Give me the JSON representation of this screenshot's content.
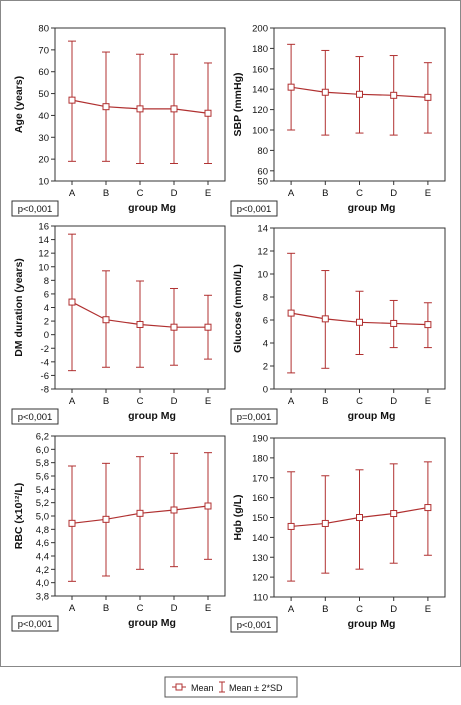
{
  "colors": {
    "series": "#b03030",
    "axis": "#333333",
    "grid": "#cccccc",
    "frame": "#888888",
    "text": "#111111"
  },
  "legend": {
    "mean_label": "Mean",
    "sd_label": "Mean ± 2*SD"
  },
  "chart_data": [
    {
      "type": "line",
      "xlabel": "group Mg",
      "ylabel": "Age (years)",
      "categories": [
        "A",
        "B",
        "C",
        "D",
        "E"
      ],
      "values": [
        47,
        44,
        43,
        43,
        41
      ],
      "upper": [
        74,
        69,
        68,
        68,
        64
      ],
      "lower": [
        19,
        19,
        18,
        18,
        18
      ],
      "ylim": [
        10,
        80
      ],
      "ticks": [
        10,
        20,
        30,
        40,
        50,
        60,
        70,
        80
      ],
      "p_value": "p<0,001"
    },
    {
      "type": "line",
      "xlabel": "group Mg",
      "ylabel": "SBP (mmHg)",
      "categories": [
        "A",
        "B",
        "C",
        "D",
        "E"
      ],
      "values": [
        142,
        137,
        135,
        134,
        132
      ],
      "upper": [
        184,
        178,
        172,
        173,
        166
      ],
      "lower": [
        100,
        95,
        97,
        95,
        97
      ],
      "ylim": [
        50,
        200
      ],
      "ticks": [
        50,
        60,
        80,
        100,
        120,
        140,
        160,
        180,
        200
      ],
      "p_value": "p<0,001"
    },
    {
      "type": "line",
      "xlabel": "group Mg",
      "ylabel": "DM duration (years)",
      "categories": [
        "A",
        "B",
        "C",
        "D",
        "E"
      ],
      "values": [
        4.8,
        2.2,
        1.5,
        1.1,
        1.1
      ],
      "upper": [
        14.8,
        9.4,
        7.9,
        6.8,
        5.8
      ],
      "lower": [
        -5.3,
        -4.8,
        -4.8,
        -4.5,
        -3.6
      ],
      "ylim": [
        -8,
        16
      ],
      "ticks": [
        -8,
        -6,
        -4,
        -2,
        0,
        2,
        4,
        6,
        8,
        10,
        12,
        14,
        16
      ],
      "p_value": "p<0,001"
    },
    {
      "type": "line",
      "xlabel": "group Mg",
      "ylabel": "Glucose (mmol/L)",
      "categories": [
        "A",
        "B",
        "C",
        "D",
        "E"
      ],
      "values": [
        6.6,
        6.1,
        5.8,
        5.7,
        5.6
      ],
      "upper": [
        11.8,
        10.3,
        8.5,
        7.7,
        7.5
      ],
      "lower": [
        1.4,
        1.8,
        3.0,
        3.6,
        3.6
      ],
      "ylim": [
        0,
        14
      ],
      "ticks": [
        0,
        2,
        4,
        6,
        8,
        10,
        12,
        14
      ],
      "p_value": "p=0,001"
    },
    {
      "type": "line",
      "xlabel": "group Mg",
      "ylabel": "RBC (x10¹²/L)",
      "categories": [
        "A",
        "B",
        "C",
        "D",
        "E"
      ],
      "values": [
        4.89,
        4.95,
        5.04,
        5.09,
        5.15
      ],
      "upper": [
        5.75,
        5.79,
        5.89,
        5.94,
        5.95
      ],
      "lower": [
        4.02,
        4.1,
        4.2,
        4.24,
        4.35
      ],
      "ylim": [
        3.8,
        6.2
      ],
      "ticks": [
        3.8,
        4.0,
        4.2,
        4.4,
        4.6,
        4.8,
        5.0,
        5.2,
        5.4,
        5.6,
        5.8,
        6.0,
        6.2
      ],
      "tick_labels": [
        "3,8",
        "4,0",
        "4,2",
        "4,4",
        "4,6",
        "4,8",
        "5,0",
        "5,2",
        "5,4",
        "5,6",
        "5,8",
        "6,0",
        "6,2"
      ],
      "p_value": "p<0,001"
    },
    {
      "type": "line",
      "xlabel": "group Mg",
      "ylabel": "Hgb (g/L)",
      "categories": [
        "A",
        "B",
        "C",
        "D",
        "E"
      ],
      "values": [
        145.5,
        147,
        150,
        152,
        155
      ],
      "upper": [
        173,
        171,
        174,
        177,
        178
      ],
      "lower": [
        118,
        122,
        124,
        127,
        131
      ],
      "ylim": [
        110,
        190
      ],
      "ticks": [
        110,
        120,
        130,
        140,
        150,
        160,
        170,
        180,
        190
      ],
      "p_value": "p<0,001"
    }
  ]
}
